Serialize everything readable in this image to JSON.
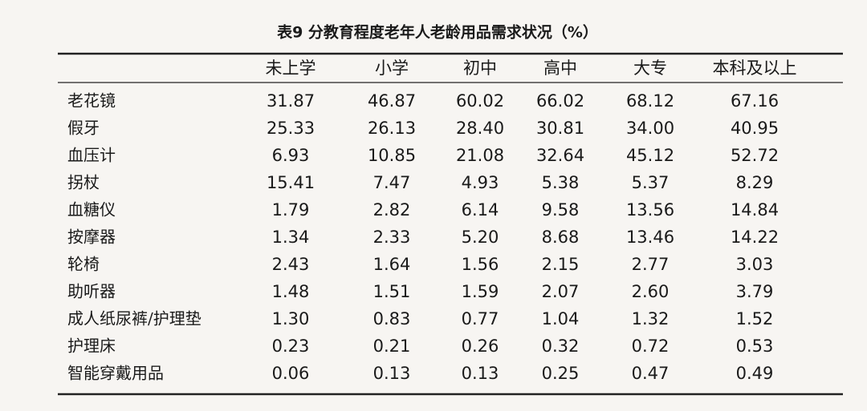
{
  "title": "表9 分教育程度老年人老龄用品需求状况（%）",
  "table": {
    "header": [
      "未上学",
      "小学",
      "初中",
      "高中",
      "大专",
      "本科及以上"
    ],
    "rows": [
      [
        "老花镜",
        "31.87",
        "46.87",
        "60.02",
        "66.02",
        "68.12",
        "67.16"
      ],
      [
        "假牙",
        "25.33",
        "26.13",
        "28.40",
        "30.81",
        "34.00",
        "40.95"
      ],
      [
        "血压计",
        "6.93",
        "10.85",
        "21.08",
        "32.64",
        "45.12",
        "52.72"
      ],
      [
        "拐杖",
        "15.41",
        "7.47",
        "4.93",
        "5.38",
        "5.37",
        "8.29"
      ],
      [
        "血糖仪",
        "1.79",
        "2.82",
        "6.14",
        "9.58",
        "13.56",
        "14.84"
      ],
      [
        "按摩器",
        "1.34",
        "2.33",
        "5.20",
        "8.68",
        "13.46",
        "14.22"
      ],
      [
        "轮椅",
        "2.43",
        "1.64",
        "1.56",
        "2.15",
        "2.77",
        "3.03"
      ],
      [
        "助听器",
        "1.48",
        "1.51",
        "1.59",
        "2.07",
        "2.60",
        "3.79"
      ],
      [
        "成人纸尿裤/护理垫",
        "1.30",
        "0.83",
        "0.77",
        "1.04",
        "1.32",
        "1.52"
      ],
      [
        "护理床",
        "0.23",
        "0.21",
        "0.26",
        "0.32",
        "0.72",
        "0.53"
      ],
      [
        "智能穿戴用品",
        "0.06",
        "0.13",
        "0.13",
        "0.25",
        "0.47",
        "0.49"
      ]
    ]
  }
}
